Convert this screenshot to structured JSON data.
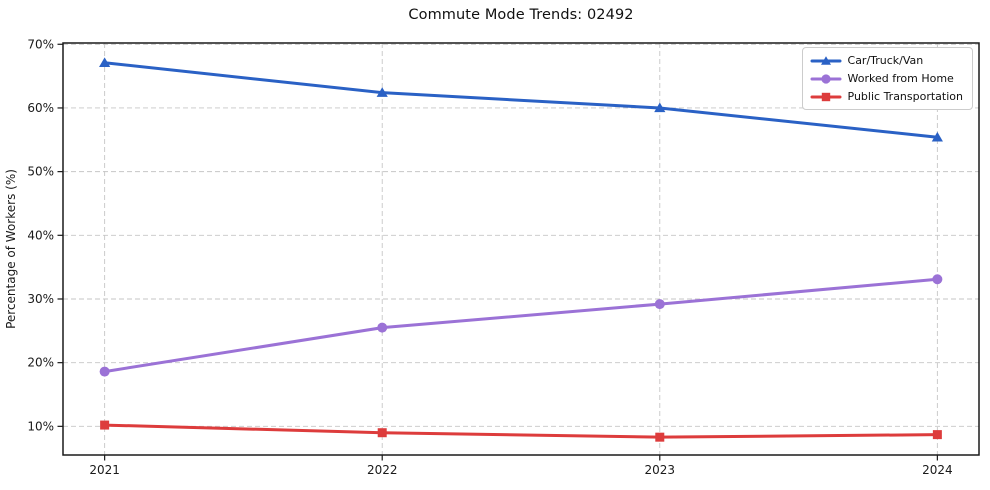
{
  "chart_data": {
    "type": "line",
    "title": "Commute Mode Trends: 02492",
    "xlabel": "",
    "ylabel": "Percentage of Workers (%)",
    "x": [
      2021,
      2022,
      2023,
      2024
    ],
    "x_tick_labels": [
      "2021",
      "2022",
      "2023",
      "2024"
    ],
    "y_ticks": [
      10,
      20,
      30,
      40,
      50,
      60,
      70
    ],
    "y_tick_suffix": "%",
    "xlim": [
      2020.85,
      2024.15
    ],
    "ylim": [
      5.5,
      70.2
    ],
    "grid": true,
    "grid_style": "dashed",
    "legend_position": "upper right",
    "colors": {
      "grid": "#c6c6c6",
      "spine": "#1a1a1a",
      "text": "#1a1a1a"
    },
    "series": [
      {
        "name": "Car/Truck/Van",
        "color": "#2a61c5",
        "marker": "triangle",
        "values": [
          67.1,
          62.4,
          60.0,
          55.4
        ]
      },
      {
        "name": "Worked from Home",
        "color": "#9b72d6",
        "marker": "circle",
        "values": [
          18.6,
          25.5,
          29.2,
          33.1
        ]
      },
      {
        "name": "Public Transportation",
        "color": "#dd3c3c",
        "marker": "square",
        "values": [
          10.2,
          9.0,
          8.3,
          8.7
        ]
      }
    ]
  }
}
